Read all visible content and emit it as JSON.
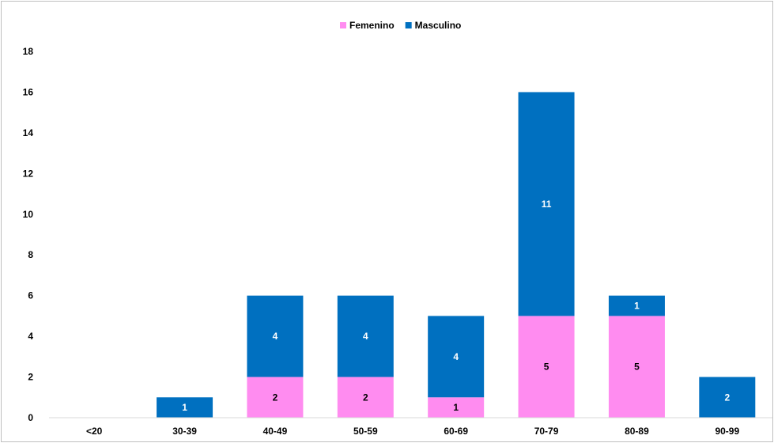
{
  "chart_data": {
    "type": "bar",
    "stacked": true,
    "title": "",
    "xlabel": "",
    "ylabel": "",
    "categories": [
      "<20",
      "30-39",
      "40-49",
      "50-59",
      "60-69",
      "70-79",
      "80-89",
      "90-99"
    ],
    "ylim": [
      0,
      18
    ],
    "yticks": [
      0,
      2,
      4,
      6,
      8,
      10,
      12,
      14,
      16,
      18
    ],
    "grid": false,
    "legend": "top-center",
    "series": [
      {
        "name": "Femenino",
        "color": "#ff8cf0",
        "label_color": "#000000",
        "values": [
          0,
          0,
          2,
          2,
          1,
          5,
          5,
          0
        ],
        "labels": [
          "",
          "",
          "2",
          "2",
          "1",
          "5",
          "5",
          ""
        ]
      },
      {
        "name": "Masculino",
        "color": "#0070c0",
        "label_color": "#ffffff",
        "values": [
          0,
          1,
          4,
          4,
          4,
          11,
          1,
          2
        ],
        "labels": [
          "",
          "1",
          "4",
          "4",
          "4",
          "11",
          "1",
          "2"
        ]
      }
    ]
  }
}
